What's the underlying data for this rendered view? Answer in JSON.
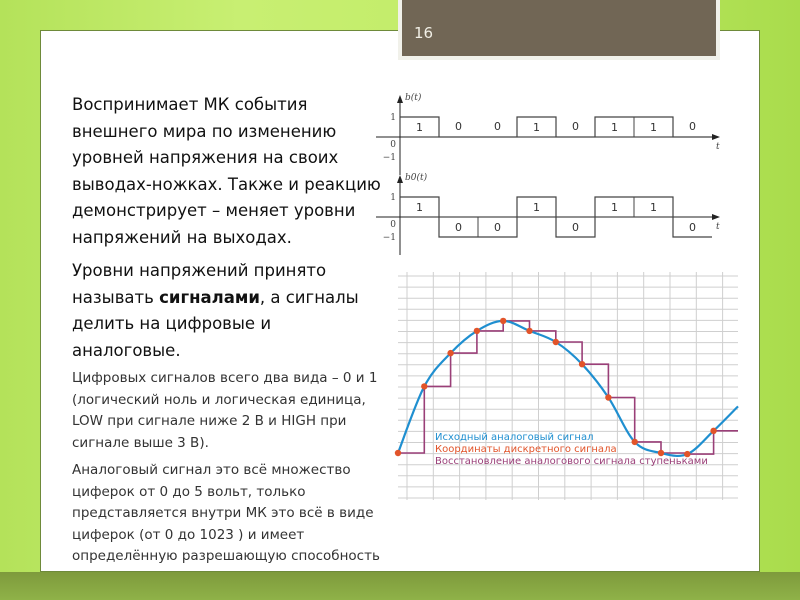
{
  "slide_number": "16",
  "paragraph1": "Воспринимает МК события внешнего мира по изменению уровней напряжения на своих выводах-ножках. Также и реакцию демонстрирует – меняет уровни напряжений на выходах.",
  "paragraph2": {
    "before": "Уровни напряжений принято называть ",
    "bold": "сигналами",
    "after": ", а сигналы делить на цифровые и аналоговые."
  },
  "paragraph3": "Цифровых сигналов всего два вида – 0 и 1 (логический ноль и логическая единица, LOW при сигнале ниже 2 В и HIGH при сигнале выше 3 В).",
  "paragraph4": "Аналоговый сигнал это всё множество циферок от 0 до 5 вольт, только представляется внутри МК это всё в виде циферок (от 0 до 1023 ) и имеет определённую разрешающую способность",
  "chart_data": [
    {
      "type": "line",
      "title": "b(t)",
      "xlabel": "t",
      "yticks": [
        "1",
        "0",
        "−1"
      ],
      "bits": [
        1,
        0,
        0,
        1,
        0,
        1,
        1,
        0
      ],
      "levels": [
        1,
        0,
        0,
        1,
        0,
        1,
        1,
        0
      ],
      "bit_labels": [
        "1",
        "0",
        "0",
        "1",
        "0",
        "1",
        "1",
        "0"
      ]
    },
    {
      "type": "line",
      "title": "b0(t)",
      "xlabel": "t",
      "yticks": [
        "1",
        "0",
        "−1"
      ],
      "bits": [
        1,
        0,
        0,
        1,
        0,
        1,
        1,
        0
      ],
      "levels": [
        1,
        -1,
        -1,
        1,
        -1,
        1,
        1,
        -1
      ],
      "bit_labels": [
        "1",
        "0",
        "0",
        "1",
        "0",
        "1",
        "1",
        "0"
      ]
    },
    {
      "type": "line",
      "grid": true,
      "x": [
        0,
        1,
        2,
        3,
        4,
        5,
        6,
        7,
        8,
        9,
        10,
        11,
        12
      ],
      "samples": [
        0,
        6,
        9,
        11,
        11.9,
        11,
        10,
        8,
        5,
        1,
        0,
        -0.1,
        2
      ],
      "series": [
        {
          "name": "Исходный аналоговый сигнал",
          "color": "#1f8fd0"
        },
        {
          "name": "Координаты дискретного сигнала",
          "color": "#e2542a"
        },
        {
          "name": "Восстановление аналогового сигнала ступеньками",
          "color": "#9a3f78"
        }
      ]
    }
  ]
}
